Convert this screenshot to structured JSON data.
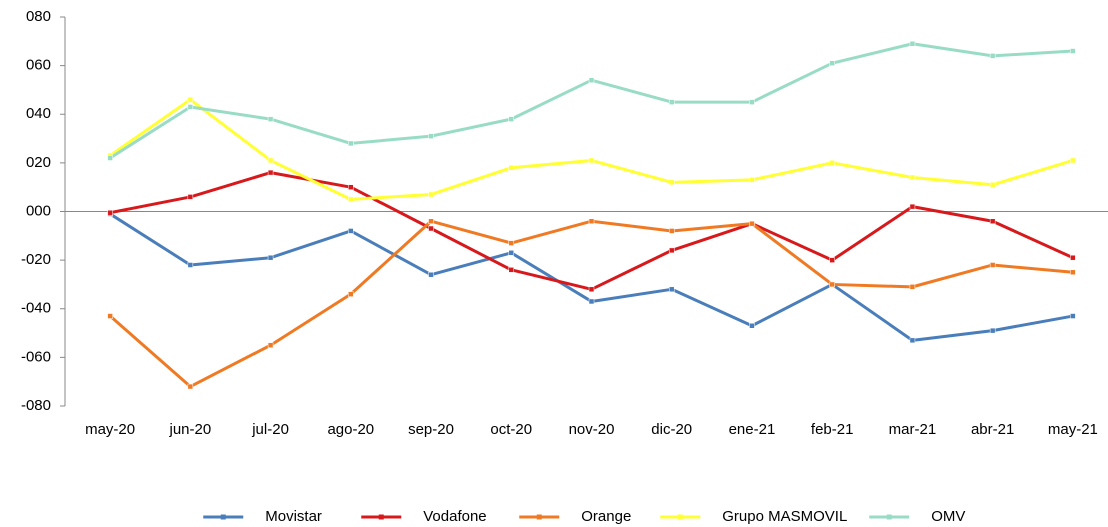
{
  "chart_data": {
    "type": "line",
    "categories": [
      "may-20",
      "jun-20",
      "jul-20",
      "ago-20",
      "sep-20",
      "oct-20",
      "nov-20",
      "dic-20",
      "ene-21",
      "feb-21",
      "mar-21",
      "abr-21",
      "may-21"
    ],
    "series": [
      {
        "name": "Movistar",
        "color": "#4a7ebb",
        "values": [
          -1,
          -22,
          -19,
          -8,
          -26,
          -17,
          -37,
          -32,
          -47,
          -30,
          -53,
          -49,
          -43
        ]
      },
      {
        "name": "Vodafone",
        "color": "#d7191c",
        "values": [
          -0.5,
          6,
          16,
          10,
          -7,
          -24,
          -32,
          -16,
          -5,
          -20,
          2,
          -4,
          -19
        ]
      },
      {
        "name": "Orange",
        "color": "#f07a23",
        "values": [
          -43,
          -72,
          -55,
          -34,
          -4,
          -13,
          -4,
          -8,
          -5,
          -30,
          -31,
          -22,
          -25
        ]
      },
      {
        "name": "Grupo MASMOVIL",
        "color": "#ffff33",
        "values": [
          23,
          46,
          21,
          5,
          7,
          18,
          21,
          12,
          13,
          20,
          14,
          11,
          21
        ]
      },
      {
        "name": "OMV",
        "color": "#99dcc6",
        "values": [
          22,
          43,
          38,
          28,
          31,
          38,
          54,
          45,
          45,
          61,
          69,
          64,
          66
        ]
      }
    ],
    "ylim": [
      -80,
      80
    ],
    "yticks": [
      {
        "value": 80,
        "label": "080"
      },
      {
        "value": 60,
        "label": "060"
      },
      {
        "value": 40,
        "label": "040"
      },
      {
        "value": 20,
        "label": "020"
      },
      {
        "value": 0,
        "label": "000"
      },
      {
        "value": -20,
        "label": "-020"
      },
      {
        "value": -40,
        "label": "-040"
      },
      {
        "value": -60,
        "label": "-060"
      },
      {
        "value": -80,
        "label": "-080"
      }
    ],
    "grid": false,
    "legend": "bottom"
  }
}
